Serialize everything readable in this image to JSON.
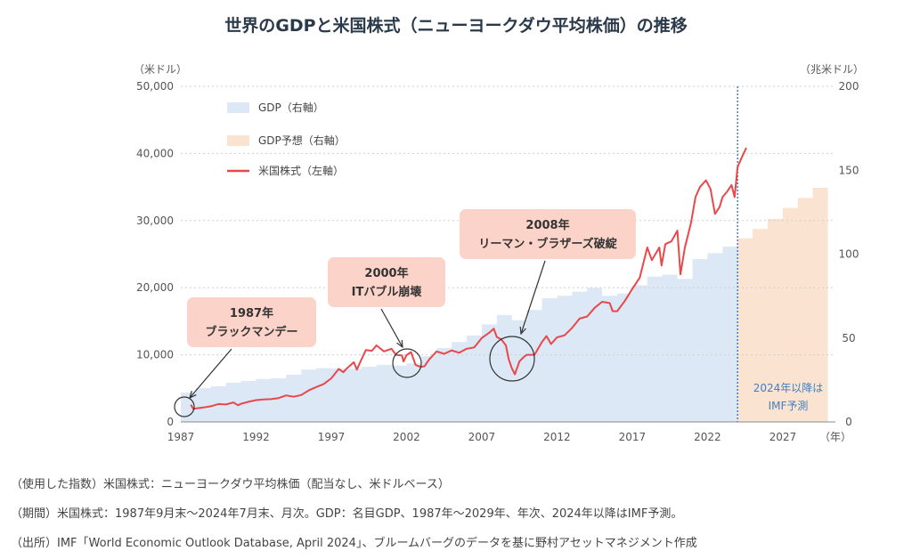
{
  "chart_data": {
    "type": "line",
    "title": "世界のGDPと米国株式（ニューヨークダウ平均株価）の推移",
    "y_left_unit": "（米ドル）",
    "y_right_unit": "（兆米ドル）",
    "x_unit": "（年）",
    "x_range": [
      1987,
      2030.5
    ],
    "y_left_range": [
      0,
      50000
    ],
    "y_right_range": [
      0,
      200
    ],
    "y_left_ticks": [
      0,
      10000,
      20000,
      30000,
      40000,
      50000
    ],
    "y_left_tick_labels": [
      "0",
      "10,000",
      "20,000",
      "30,000",
      "40,000",
      "50,000"
    ],
    "y_right_ticks": [
      0,
      50,
      100,
      150,
      200
    ],
    "y_right_tick_labels": [
      "0",
      "50",
      "100",
      "150",
      "200"
    ],
    "x_ticks": [
      1987,
      1992,
      1997,
      2002,
      2007,
      2012,
      2017,
      2022,
      2027
    ],
    "x_tick_labels": [
      "1987",
      "1992",
      "1997",
      "2002",
      "2007",
      "2012",
      "2017",
      "2022",
      "2027"
    ],
    "grid": true,
    "legend_position": "top-left",
    "legend": [
      {
        "label": "GDP（右軸）",
        "kind": "gdp",
        "color": "#dce8f6"
      },
      {
        "label": "GDP予想（右軸）",
        "kind": "gdp_forecast",
        "color": "#fbe3d1"
      },
      {
        "label": "米国株式（左軸）",
        "kind": "stock",
        "color": "#e8484a"
      }
    ],
    "colors": {
      "gdp": "#dce8f6",
      "gdp_forecast": "#fbe3d1",
      "stock": "#e8484a",
      "callout": "#fbd3c8",
      "forecast_line": "#3f7fc4"
    },
    "series": [
      {
        "kind": "gdp",
        "axis": "right",
        "type": "step-area",
        "x": [
          1987,
          1988,
          1989,
          1990,
          1991,
          1992,
          1993,
          1994,
          1995,
          1996,
          1997,
          1998,
          1999,
          2000,
          2001,
          2002,
          2003,
          2004,
          2005,
          2006,
          2007,
          2008,
          2009,
          2010,
          2011,
          2012,
          2013,
          2014,
          2015,
          2016,
          2017,
          2018,
          2019,
          2020,
          2021,
          2022,
          2023
        ],
        "values": [
          17.5,
          20.2,
          21.2,
          23.4,
          24.4,
          25.6,
          26.0,
          28.2,
          31.2,
          32.0,
          31.9,
          31.6,
          32.8,
          34.0,
          33.6,
          34.9,
          39.2,
          44.0,
          47.6,
          51.5,
          58.1,
          63.7,
          60.6,
          66.7,
          73.7,
          75.2,
          77.6,
          79.9,
          75.2,
          76.5,
          81.4,
          86.6,
          87.8,
          85.2,
          97.0,
          100.6,
          104.5
        ]
      },
      {
        "kind": "gdp_forecast",
        "axis": "right",
        "type": "step-area",
        "x": [
          2024,
          2025,
          2026,
          2027,
          2028,
          2029
        ],
        "values": [
          109.5,
          115.0,
          121.0,
          127.5,
          133.5,
          139.5
        ]
      },
      {
        "kind": "stock",
        "axis": "left",
        "type": "line",
        "x": [
          1987.67,
          1987.83,
          1988.0,
          1988.5,
          1989.0,
          1989.5,
          1990.0,
          1990.5,
          1990.8,
          1991.0,
          1991.5,
          1992.0,
          1992.5,
          1993.0,
          1993.5,
          1994.0,
          1994.5,
          1995.0,
          1995.5,
          1996.0,
          1996.5,
          1997.0,
          1997.5,
          1997.8,
          1998.0,
          1998.5,
          1998.7,
          1999.0,
          1999.3,
          1999.7,
          2000.0,
          2000.5,
          2001.0,
          2001.3,
          2001.7,
          2001.8,
          2002.0,
          2002.3,
          2002.6,
          2002.8,
          2003.0,
          2003.2,
          2003.5,
          2004.0,
          2004.5,
          2005.0,
          2005.5,
          2006.0,
          2006.5,
          2007.0,
          2007.5,
          2007.8,
          2008.0,
          2008.3,
          2008.6,
          2008.8,
          2009.0,
          2009.2,
          2009.5,
          2009.8,
          2010.0,
          2010.5,
          2011.0,
          2011.3,
          2011.6,
          2012.0,
          2012.5,
          2013.0,
          2013.5,
          2014.0,
          2014.5,
          2015.0,
          2015.5,
          2015.7,
          2016.0,
          2016.5,
          2017.0,
          2017.5,
          2018.0,
          2018.3,
          2018.8,
          2018.95,
          2019.2,
          2019.6,
          2020.0,
          2020.2,
          2020.5,
          2020.9,
          2021.2,
          2021.5,
          2021.9,
          2022.2,
          2022.5,
          2022.8,
          2023.0,
          2023.3,
          2023.6,
          2023.8,
          2024.0,
          2024.3,
          2024.58
        ],
        "values": [
          2570,
          1930,
          2000,
          2150,
          2340,
          2660,
          2600,
          2900,
          2480,
          2700,
          3000,
          3250,
          3350,
          3400,
          3550,
          3950,
          3750,
          4000,
          4700,
          5200,
          5650,
          6500,
          7900,
          7400,
          7900,
          8900,
          7800,
          9300,
          10700,
          10600,
          11400,
          10500,
          10900,
          10000,
          9900,
          9000,
          9950,
          10400,
          8500,
          8300,
          8200,
          8300,
          9300,
          10500,
          10150,
          10650,
          10300,
          10900,
          11100,
          12500,
          13300,
          13900,
          12650,
          12300,
          11400,
          9300,
          8000,
          7100,
          9000,
          9700,
          10000,
          10000,
          11900,
          12800,
          11600,
          12600,
          12900,
          14000,
          15400,
          15700,
          17000,
          17900,
          17700,
          16500,
          16500,
          18000,
          19800,
          21500,
          26000,
          24100,
          26000,
          23300,
          26500,
          26900,
          28500,
          22000,
          26000,
          29600,
          33500,
          35000,
          36000,
          34700,
          31000,
          32000,
          33500,
          34300,
          35300,
          33500,
          38000,
          39500,
          40842
        ]
      }
    ],
    "callouts": [
      {
        "line1": "1987年",
        "line2": "ブラックマンデー",
        "x": 1987.75,
        "y": 2200
      },
      {
        "line1": "2000年",
        "line2": "ITバブル崩壊",
        "x": 2001.8,
        "y": 9700
      },
      {
        "line1": "2008年",
        "line2": "リーマン・ブラザーズ破綻",
        "x": 2008.6,
        "y": 9700
      }
    ],
    "forecast_start": 2024,
    "forecast_note_line1": "2024年以降は",
    "forecast_note_line2": "IMF予測"
  },
  "notes": {
    "index": "（使用した指数）米国株式：ニューヨークダウ平均株価（配当なし、米ドルベース）",
    "period": "（期間）米国株式：1987年9月末～2024年7月末、月次。GDP：名目GDP、1987年～2029年、年次、2024年以降はIMF予測。",
    "source": "（出所）IMF「World Economic Outlook Database, April 2024」、ブルームバーグのデータを基に野村アセットマネジメント作成"
  }
}
